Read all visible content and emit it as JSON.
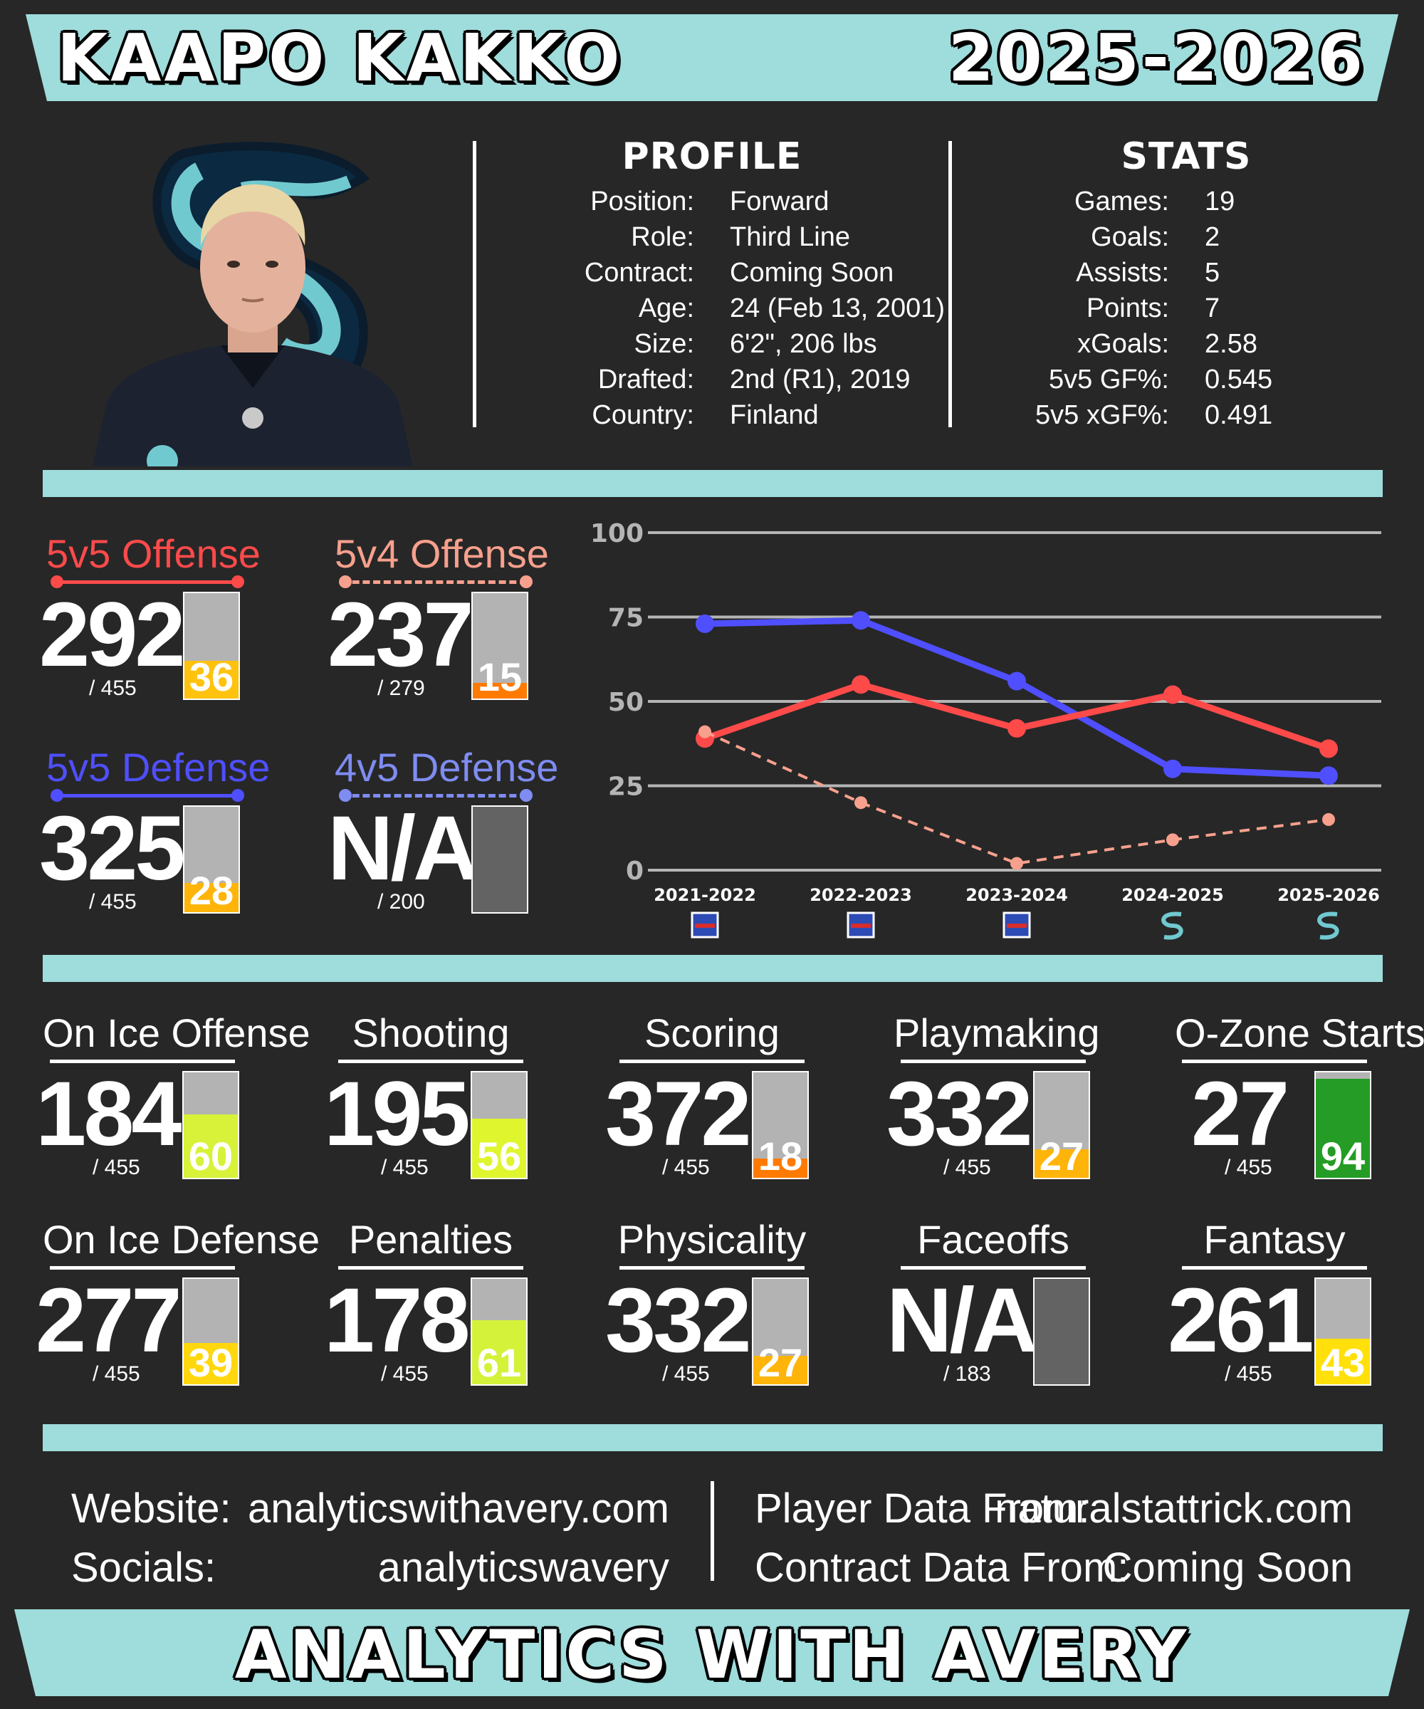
{
  "header": {
    "player_name": "KAAPO KAKKO",
    "season": "2025-2026"
  },
  "colors": {
    "banner": "#9fdcdc",
    "background": "#272727",
    "offense_red": "#ff4a4a",
    "pp_salmon": "#f7a08d",
    "defense_blue": "#4f4fff",
    "pk_blue": "#7f8cf2",
    "bar_bg": "#b3b3b3",
    "bar_na": "#636363"
  },
  "photo": {
    "alt_icon": "kraken-logo-icon"
  },
  "profile": {
    "title": "PROFILE",
    "rows": [
      {
        "key": "Position:",
        "value": "Forward"
      },
      {
        "key": "Role:",
        "value": "Third Line"
      },
      {
        "key": "Contract:",
        "value": "Coming Soon"
      },
      {
        "key": "Age:",
        "value": "24 (Feb 13, 2001)"
      },
      {
        "key": "Size:",
        "value": "6'2\", 206 lbs"
      },
      {
        "key": "Drafted:",
        "value": "2nd (R1), 2019"
      },
      {
        "key": "Country:",
        "value": "Finland"
      }
    ]
  },
  "stats": {
    "title": "STATS",
    "rows": [
      {
        "key": "Games:",
        "value": "19"
      },
      {
        "key": "Goals:",
        "value": "2"
      },
      {
        "key": "Assists:",
        "value": "5"
      },
      {
        "key": "Points:",
        "value": "7"
      },
      {
        "key": "xGoals:",
        "value": "2.58"
      },
      {
        "key": "5v5 GF%:",
        "value": "0.545"
      },
      {
        "key": "5v5 xGF%:",
        "value": "0.491"
      }
    ]
  },
  "special_metrics": [
    {
      "title": "5v5 Offense",
      "rank": "292",
      "denom": "/ 455",
      "pct": 36,
      "pct_label": "36",
      "color": "#ff4a4a",
      "line": "solid",
      "fill": "#ffc20e"
    },
    {
      "title": "5v4 Offense",
      "rank": "237",
      "denom": "/ 279",
      "pct": 15,
      "pct_label": "15",
      "color": "#f7a08d",
      "line": "dashed",
      "fill": "#ff7a00"
    },
    {
      "title": "5v5 Defense",
      "rank": "325",
      "denom": "/ 455",
      "pct": 28,
      "pct_label": "28",
      "color": "#4f4fff",
      "line": "solid",
      "fill": "#ffb40a"
    },
    {
      "title": "4v5 Defense",
      "rank": "N/A",
      "denom": "/ 200",
      "pct": null,
      "pct_label": "",
      "color": "#7f8cf2",
      "line": "dashed",
      "fill": ""
    }
  ],
  "chart_data": {
    "type": "line",
    "categories": [
      "2021-2022",
      "2022-2023",
      "2023-2024",
      "2024-2025",
      "2025-2026"
    ],
    "team_icons": [
      "rangers-logo-icon",
      "rangers-logo-icon",
      "rangers-logo-icon",
      "kraken-logo-icon",
      "kraken-logo-icon"
    ],
    "ylim": [
      0,
      100
    ],
    "yticks": [
      0,
      25,
      50,
      75,
      100
    ],
    "grid": true,
    "series": [
      {
        "key": "5v5 Defense",
        "color": "#4f4fff",
        "style": "solid",
        "values": [
          73,
          74,
          56,
          30,
          28
        ]
      },
      {
        "key": "5v5 Offense",
        "color": "#ff4a4a",
        "style": "solid",
        "values": [
          39,
          55,
          42,
          52,
          36
        ]
      },
      {
        "key": "5v4 Offense",
        "color": "#f7a08d",
        "style": "dashed",
        "values": [
          41,
          20,
          2,
          9,
          15
        ]
      }
    ]
  },
  "metrics": [
    {
      "title": "On Ice Offense",
      "rank": "184",
      "denom": "/ 455",
      "pct": 60,
      "pct_label": "60",
      "fill": "#d8f23a"
    },
    {
      "title": "Shooting",
      "rank": "195",
      "denom": "/ 455",
      "pct": 56,
      "pct_label": "56",
      "fill": "#dff52e"
    },
    {
      "title": "Scoring",
      "rank": "372",
      "denom": "/ 455",
      "pct": 18,
      "pct_label": "18",
      "fill": "#ff7a00"
    },
    {
      "title": "Playmaking",
      "rank": "332",
      "denom": "/ 455",
      "pct": 27,
      "pct_label": "27",
      "fill": "#ffb40a"
    },
    {
      "title": "O-Zone Starts",
      "rank": "27",
      "denom": "/ 455",
      "pct": 94,
      "pct_label": "94",
      "fill": "#249c25"
    },
    {
      "title": "On Ice Defense",
      "rank": "277",
      "denom": "/ 455",
      "pct": 39,
      "pct_label": "39",
      "fill": "#ffd70e"
    },
    {
      "title": "Penalties",
      "rank": "178",
      "denom": "/ 455",
      "pct": 61,
      "pct_label": "61",
      "fill": "#d4f23a"
    },
    {
      "title": "Physicality",
      "rank": "332",
      "denom": "/ 455",
      "pct": 27,
      "pct_label": "27",
      "fill": "#ffb40a"
    },
    {
      "title": "Faceoffs",
      "rank": "N/A",
      "denom": "/ 183",
      "pct": null,
      "pct_label": "",
      "fill": ""
    },
    {
      "title": "Fantasy",
      "rank": "261",
      "denom": "/ 455",
      "pct": 43,
      "pct_label": "43",
      "fill": "#ffe00a"
    }
  ],
  "footer_info": {
    "website_label": "Website:",
    "website_value": "analyticswithavery.com",
    "socials_label": "Socials:",
    "socials_value": "analyticswavery",
    "player_data_label": "Player Data From:",
    "player_data_value": "naturalstattrick.com",
    "contract_data_label": "Contract Data From:",
    "contract_data_value": "Coming Soon"
  },
  "footer": {
    "brand": "ANALYTICS WITH AVERY"
  }
}
